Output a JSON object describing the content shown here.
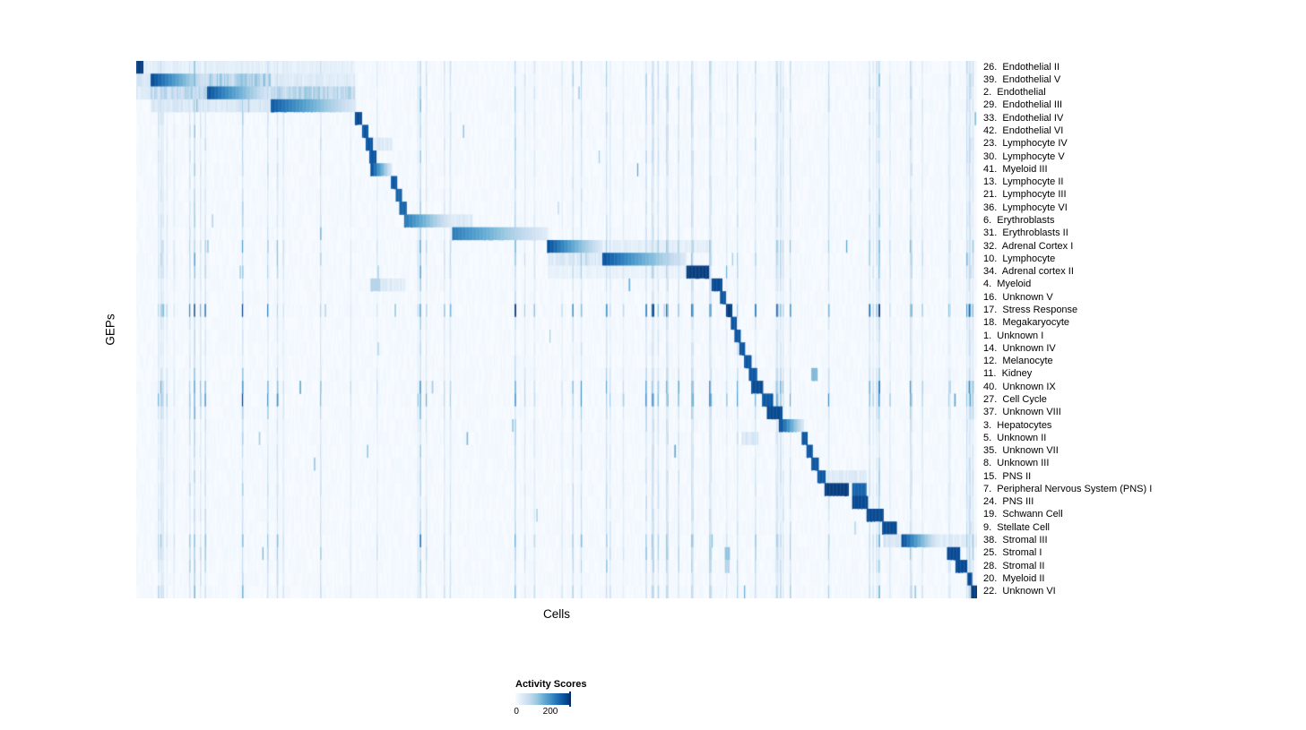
{
  "figure": {
    "x_axis_label": "Cells",
    "y_axis_label": "GEPs"
  },
  "legend": {
    "title": "Activity Scores",
    "tick_min": "0",
    "tick_max": "200"
  },
  "chart_data": {
    "type": "heatmap",
    "title": "",
    "xlabel": "Cells",
    "ylabel": "GEPs",
    "colormap": "Blues",
    "colorbar": {
      "title": "Activity Scores",
      "ticks": [
        0,
        200
      ]
    },
    "grid": false,
    "legend_position": "bottom-left",
    "colors": {
      "background": "#ffffff",
      "heatmap_low": "#f7fbff",
      "heatmap_high": "#08306b",
      "blues_stops": [
        "#f7fbff",
        "#deebf7",
        "#c6dbef",
        "#9ecae1",
        "#6baed6",
        "#4292c6",
        "#2171b5",
        "#08519c",
        "#08306b"
      ]
    },
    "rows": [
      {
        "label": "26.  Endothelial II",
        "noise": 1.0,
        "blocks": [
          {
            "s": 0.0,
            "e": 0.008,
            "v": 0.95
          },
          {
            "s": 0.008,
            "e": 0.26,
            "v": 0.09,
            "tex": 1
          }
        ]
      },
      {
        "label": "39.  Endothelial V",
        "noise": 1.1,
        "blocks": [
          {
            "s": 0.017,
            "e": 0.085,
            "v": 0.92,
            "fade": "right"
          },
          {
            "s": 0.085,
            "e": 0.16,
            "v": 0.3,
            "tex": 1
          },
          {
            "s": 0.0,
            "e": 0.017,
            "v": 0.15,
            "tex": 1
          },
          {
            "s": 0.16,
            "e": 0.26,
            "v": 0.12,
            "tex": 1
          }
        ]
      },
      {
        "label": "2.  Endothelial",
        "noise": 1.1,
        "blocks": [
          {
            "s": 0.085,
            "e": 0.16,
            "v": 0.88,
            "fade": "right"
          },
          {
            "s": 0.017,
            "e": 0.085,
            "v": 0.25,
            "tex": 1
          },
          {
            "s": 0.16,
            "e": 0.26,
            "v": 0.28,
            "tex": 1
          },
          {
            "s": 0.0,
            "e": 0.017,
            "v": 0.12,
            "tex": 1
          }
        ]
      },
      {
        "label": "29.  Endothelial III",
        "noise": 1.0,
        "blocks": [
          {
            "s": 0.16,
            "e": 0.262,
            "v": 0.85,
            "fade": "right"
          },
          {
            "s": 0.017,
            "e": 0.16,
            "v": 0.15,
            "tex": 1
          }
        ]
      },
      {
        "label": "33.  Endothelial IV",
        "noise": 0.9,
        "blocks": [
          {
            "s": 0.26,
            "e": 0.269,
            "v": 0.9
          }
        ]
      },
      {
        "label": "42.  Endothelial VI",
        "noise": 0.9,
        "blocks": [
          {
            "s": 0.268,
            "e": 0.276,
            "v": 0.85
          }
        ]
      },
      {
        "label": "23.  Lymphocyte IV",
        "noise": 0.9,
        "blocks": [
          {
            "s": 0.273,
            "e": 0.281,
            "v": 0.85
          },
          {
            "s": 0.281,
            "e": 0.305,
            "v": 0.12,
            "tex": 1
          }
        ]
      },
      {
        "label": "30.  Lymphocyte V",
        "noise": 0.9,
        "blocks": [
          {
            "s": 0.277,
            "e": 0.286,
            "v": 0.85
          }
        ]
      },
      {
        "label": "41.  Myeloid III",
        "noise": 0.9,
        "blocks": [
          {
            "s": 0.279,
            "e": 0.304,
            "v": 0.9,
            "fade": "right"
          }
        ]
      },
      {
        "label": "13.  Lymphocyte II",
        "noise": 0.8,
        "blocks": [
          {
            "s": 0.303,
            "e": 0.31,
            "v": 0.85
          }
        ]
      },
      {
        "label": "21.  Lymphocyte III",
        "noise": 0.8,
        "blocks": [
          {
            "s": 0.308,
            "e": 0.316,
            "v": 0.8
          }
        ]
      },
      {
        "label": "36.  Lymphocyte VI",
        "noise": 0.8,
        "blocks": [
          {
            "s": 0.313,
            "e": 0.321,
            "v": 0.8
          }
        ]
      },
      {
        "label": "6.  Erythroblasts",
        "noise": 0.9,
        "blocks": [
          {
            "s": 0.318,
            "e": 0.377,
            "v": 0.75,
            "fade": "right"
          },
          {
            "s": 0.377,
            "e": 0.4,
            "v": 0.15,
            "tex": 1
          }
        ]
      },
      {
        "label": "31.  Erythroblasts II",
        "noise": 0.8,
        "blocks": [
          {
            "s": 0.376,
            "e": 0.49,
            "v": 0.72,
            "fade": "right"
          }
        ]
      },
      {
        "label": "32.  Adrenal Cortex I",
        "noise": 1.6,
        "blocks": [
          {
            "s": 0.488,
            "e": 0.554,
            "v": 0.9,
            "fade": "right"
          },
          {
            "s": 0.554,
            "e": 0.68,
            "v": 0.1,
            "tex": 1
          }
        ]
      },
      {
        "label": "10.  Lymphocyte",
        "noise": 1.6,
        "blocks": [
          {
            "s": 0.554,
            "e": 0.654,
            "v": 0.88,
            "fade": "right"
          },
          {
            "s": 0.49,
            "e": 0.554,
            "v": 0.13,
            "tex": 1
          }
        ]
      },
      {
        "label": "34.  Adrenal cortex II",
        "noise": 1.2,
        "blocks": [
          {
            "s": 0.654,
            "e": 0.682,
            "v": 0.95
          },
          {
            "s": 0.49,
            "e": 0.654,
            "v": 0.07,
            "tex": 1
          }
        ]
      },
      {
        "label": "4.  Myeloid",
        "noise": 0.8,
        "blocks": [
          {
            "s": 0.685,
            "e": 0.697,
            "v": 0.9
          },
          {
            "s": 0.278,
            "e": 0.29,
            "v": 0.3
          },
          {
            "s": 0.29,
            "e": 0.32,
            "v": 0.12,
            "tex": 1
          }
        ]
      },
      {
        "label": "16.  Unknown V",
        "noise": 0.7,
        "blocks": [
          {
            "s": 0.695,
            "e": 0.702,
            "v": 0.85
          }
        ]
      },
      {
        "label": "17.  Stress Response",
        "noise": 3.0,
        "blocks": [
          {
            "s": 0.701,
            "e": 0.708,
            "v": 0.95
          }
        ]
      },
      {
        "label": "18.  Megakaryocyte",
        "noise": 0.7,
        "blocks": [
          {
            "s": 0.707,
            "e": 0.714,
            "v": 0.85
          }
        ]
      },
      {
        "label": "1.  Unknown I",
        "noise": 0.7,
        "blocks": [
          {
            "s": 0.712,
            "e": 0.719,
            "v": 0.85
          }
        ]
      },
      {
        "label": "14.  Unknown IV",
        "noise": 0.7,
        "blocks": [
          {
            "s": 0.717,
            "e": 0.725,
            "v": 0.85
          }
        ]
      },
      {
        "label": "12.  Melanocyte",
        "noise": 0.7,
        "blocks": [
          {
            "s": 0.723,
            "e": 0.731,
            "v": 0.85
          }
        ]
      },
      {
        "label": "11.  Kidney",
        "noise": 1.0,
        "blocks": [
          {
            "s": 0.729,
            "e": 0.739,
            "v": 0.85
          },
          {
            "s": 0.803,
            "e": 0.81,
            "v": 0.45
          }
        ]
      },
      {
        "label": "40.  Unknown IX",
        "noise": 2.2,
        "blocks": [
          {
            "s": 0.731,
            "e": 0.746,
            "v": 0.9
          }
        ]
      },
      {
        "label": "27.  Cell Cycle",
        "noise": 2.6,
        "blocks": [
          {
            "s": 0.744,
            "e": 0.757,
            "v": 0.85
          }
        ]
      },
      {
        "label": "37.  Unknown VIII",
        "noise": 1.2,
        "blocks": [
          {
            "s": 0.75,
            "e": 0.768,
            "v": 0.9
          }
        ]
      },
      {
        "label": "3.  Hepatocytes",
        "noise": 0.9,
        "blocks": [
          {
            "s": 0.765,
            "e": 0.794,
            "v": 0.9,
            "fade": "right"
          }
        ]
      },
      {
        "label": "5.  Unknown II",
        "noise": 0.8,
        "blocks": [
          {
            "s": 0.792,
            "e": 0.799,
            "v": 0.85
          },
          {
            "s": 0.72,
            "e": 0.74,
            "v": 0.15,
            "tex": 1
          }
        ]
      },
      {
        "label": "35.  Unknown VII",
        "noise": 0.8,
        "blocks": [
          {
            "s": 0.797,
            "e": 0.804,
            "v": 0.85
          }
        ]
      },
      {
        "label": "8.  Unknown III",
        "noise": 0.8,
        "blocks": [
          {
            "s": 0.803,
            "e": 0.811,
            "v": 0.85
          }
        ]
      },
      {
        "label": "15.  PNS II",
        "noise": 0.9,
        "blocks": [
          {
            "s": 0.81,
            "e": 0.82,
            "v": 0.85
          },
          {
            "s": 0.82,
            "e": 0.868,
            "v": 0.12,
            "tex": 1
          }
        ]
      },
      {
        "label": "7.  Peripheral Nervous System (PNS) I",
        "noise": 0.9,
        "blocks": [
          {
            "s": 0.819,
            "e": 0.847,
            "v": 0.95
          },
          {
            "s": 0.851,
            "e": 0.868,
            "v": 0.8
          }
        ]
      },
      {
        "label": "24.  PNS III",
        "noise": 0.9,
        "blocks": [
          {
            "s": 0.851,
            "e": 0.87,
            "v": 0.9
          }
        ]
      },
      {
        "label": "19.  Schwann Cell",
        "noise": 0.9,
        "blocks": [
          {
            "s": 0.869,
            "e": 0.889,
            "v": 0.9
          }
        ]
      },
      {
        "label": "9.  Stellate Cell",
        "noise": 0.9,
        "blocks": [
          {
            "s": 0.887,
            "e": 0.905,
            "v": 0.9
          }
        ]
      },
      {
        "label": "38.  Stromal III",
        "noise": 1.6,
        "blocks": [
          {
            "s": 0.91,
            "e": 0.953,
            "v": 0.9,
            "fade": "right"
          },
          {
            "s": 0.889,
            "e": 0.91,
            "v": 0.15,
            "tex": 1
          },
          {
            "s": 0.953,
            "e": 1.0,
            "v": 0.12,
            "tex": 1
          }
        ]
      },
      {
        "label": "25.  Stromal I",
        "noise": 1.4,
        "blocks": [
          {
            "s": 0.964,
            "e": 0.98,
            "v": 0.9
          },
          {
            "s": 0.7,
            "e": 0.706,
            "v": 0.4
          }
        ]
      },
      {
        "label": "28.  Stromal II",
        "noise": 1.2,
        "blocks": [
          {
            "s": 0.974,
            "e": 0.988,
            "v": 0.9
          },
          {
            "s": 0.7,
            "e": 0.706,
            "v": 0.3
          }
        ]
      },
      {
        "label": "20.  Myeloid II",
        "noise": 0.9,
        "blocks": [
          {
            "s": 0.988,
            "e": 0.995,
            "v": 0.9
          }
        ]
      },
      {
        "label": "22.  Unknown VI",
        "noise": 1.3,
        "blocks": [
          {
            "s": 0.993,
            "e": 1.0,
            "v": 0.95
          }
        ]
      }
    ]
  }
}
